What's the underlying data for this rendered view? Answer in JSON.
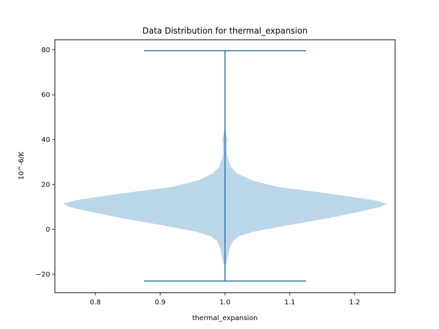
{
  "chart_data": {
    "type": "violin",
    "title": "Data Distribution for thermal_expansion",
    "xlabel": "thermal_expansion",
    "ylabel": "10^-6/K",
    "xlim": [
      0.7375,
      1.2625
    ],
    "ylim": [
      -28.2,
      84.5
    ],
    "xticks": [
      0.8,
      0.9,
      1.0,
      1.1,
      1.2
    ],
    "xtick_labels": [
      "0.8",
      "0.9",
      "1.0",
      "1.1",
      "1.2"
    ],
    "yticks": [
      -20,
      0,
      20,
      40,
      60,
      80
    ],
    "ytick_labels": [
      "−20",
      "0",
      "20",
      "40",
      "60",
      "80"
    ],
    "violin": {
      "position": 1.0,
      "min": -23.0,
      "max": 79.6,
      "cap_halfwidth": 0.125,
      "density_profile": [
        [
          -16.0,
          0.0
        ],
        [
          -15.0,
          0.003
        ],
        [
          -13.0,
          0.004
        ],
        [
          -10.0,
          0.006
        ],
        [
          -7.0,
          0.009
        ],
        [
          -5.0,
          0.013
        ],
        [
          -3.0,
          0.022
        ],
        [
          -1.0,
          0.045
        ],
        [
          2.0,
          0.1
        ],
        [
          5.0,
          0.16
        ],
        [
          8.0,
          0.21
        ],
        [
          10.0,
          0.24
        ],
        [
          11.5,
          0.25
        ],
        [
          13.0,
          0.23
        ],
        [
          16.0,
          0.16
        ],
        [
          19.0,
          0.08
        ],
        [
          22.0,
          0.04
        ],
        [
          25.0,
          0.018
        ],
        [
          28.0,
          0.009
        ],
        [
          31.0,
          0.005
        ],
        [
          34.0,
          0.003
        ],
        [
          37.0,
          0.003
        ],
        [
          40.0,
          0.004
        ],
        [
          43.0,
          0.002
        ],
        [
          45.0,
          0.0
        ]
      ],
      "fill_color": "#1f77b4",
      "fill_opacity": 0.3,
      "line_color": "#1f77b4"
    },
    "grid": false
  }
}
